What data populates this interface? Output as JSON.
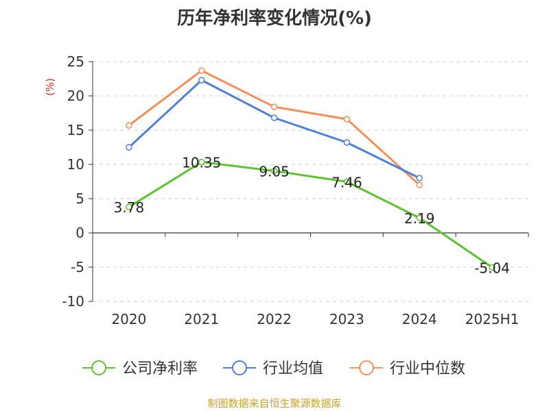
{
  "chart_data": {
    "type": "line",
    "title": "历年净利率变化情况(%)",
    "ylabel": "(%)",
    "xlabel": "",
    "categories": [
      "2020",
      "2021",
      "2022",
      "2023",
      "2024",
      "2025H1"
    ],
    "ylim": [
      -10,
      25
    ],
    "yticks": [
      25,
      20,
      15,
      10,
      5,
      0,
      -5,
      -10
    ],
    "grid": true,
    "legend_position": "bottom",
    "series": [
      {
        "name": "公司净利率",
        "color": "#5cc32e",
        "values": [
          3.78,
          10.35,
          9.05,
          7.46,
          2.19,
          -5.04
        ],
        "labels": [
          "3.78",
          "10.35",
          "9.05",
          "7.46",
          "2.19",
          "-5.04"
        ]
      },
      {
        "name": "行业均值",
        "color": "#4e7fd6",
        "values": [
          12.5,
          22.3,
          16.8,
          13.2,
          8.0,
          null
        ]
      },
      {
        "name": "行业中位数",
        "color": "#f68e5a",
        "values": [
          15.7,
          23.7,
          18.4,
          16.6,
          7.0,
          null
        ]
      }
    ],
    "source": "制图数据来自恒生聚源数据库"
  }
}
